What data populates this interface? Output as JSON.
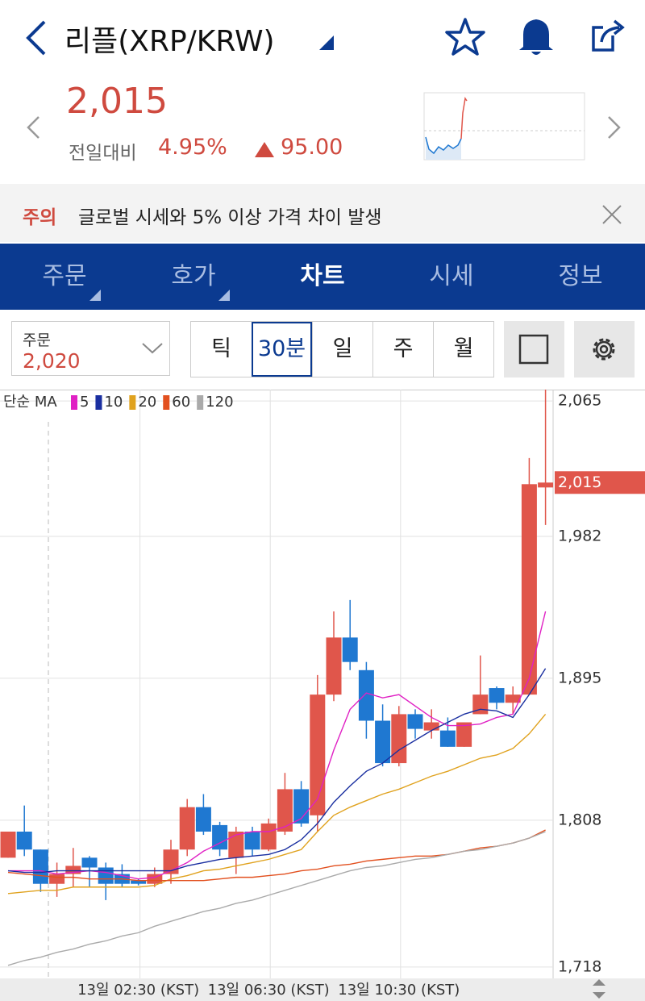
{
  "header": {
    "title": "리플(XRP/KRW)"
  },
  "price": {
    "current": "2,015",
    "change_label": "전일대비",
    "change_percent": "4.95%",
    "change_amount": "95.00"
  },
  "notice": {
    "tag": "주의",
    "text": "글로벌 시세와 5% 이상 가격 차이 발생"
  },
  "tabs": [
    "주문",
    "호가",
    "차트",
    "시세",
    "정보"
  ],
  "active_tab": 2,
  "order": {
    "label": "주문",
    "value": "2,020"
  },
  "periods": [
    "틱",
    "30분",
    "일",
    "주",
    "월"
  ],
  "active_period": 1,
  "chart_data": {
    "type": "candlestick",
    "legend_title": "단순 MA",
    "categories": [
      null,
      null,
      null,
      null,
      null,
      null,
      null,
      null,
      "13일 02:30 (KST)",
      null,
      null,
      null,
      null,
      null,
      null,
      null,
      "13일 06:30 (KST)",
      null,
      null,
      null,
      null,
      null,
      null,
      null,
      "13일 10:30 (KST)",
      null,
      null,
      null,
      null,
      null,
      null,
      null,
      null,
      null
    ],
    "open": [
      1785,
      1801,
      1790,
      1769,
      1775,
      1785,
      1779,
      1775,
      1771,
      1769,
      1775,
      1790,
      1816,
      1805,
      1785,
      1801,
      1790,
      1801,
      1827,
      1811,
      1885,
      1920,
      1900,
      1869,
      1843,
      1873,
      1863,
      1863,
      1853,
      1873,
      1889,
      1880,
      1885,
      2012
    ],
    "high": [
      1801,
      1817,
      1790,
      1782,
      1791,
      1786,
      1782,
      1781,
      1772,
      1779,
      1796,
      1821,
      1824,
      1807,
      1804,
      1804,
      1809,
      1837,
      1832,
      1897,
      1936,
      1943,
      1905,
      1879,
      1878,
      1876,
      1876,
      1871,
      1868,
      1909,
      1890,
      1890,
      2030,
      2072
    ],
    "low": [
      1785,
      1786,
      1764,
      1761,
      1767,
      1767,
      1759,
      1767,
      1768,
      1767,
      1769,
      1786,
      1799,
      1786,
      1775,
      1786,
      1789,
      1799,
      1804,
      1801,
      1881,
      1900,
      1858,
      1841,
      1841,
      1858,
      1858,
      1853,
      1853,
      1873,
      1876,
      1873,
      1885,
      1989
    ],
    "close": [
      1801,
      1790,
      1769,
      1775,
      1780,
      1779,
      1769,
      1769,
      1769,
      1775,
      1790,
      1816,
      1801,
      1790,
      1801,
      1790,
      1806,
      1827,
      1806,
      1885,
      1920,
      1905,
      1869,
      1843,
      1873,
      1864,
      1868,
      1853,
      1868,
      1885,
      1880,
      1885,
      2014,
      2015
    ],
    "up_color": "#e0564b",
    "down_color": "#1f78d1",
    "series": [
      {
        "name": "5",
        "color": "#e021c4",
        "values": [
          1777,
          1777,
          1777,
          1775,
          1776,
          1777,
          1776,
          1774,
          1772,
          1773,
          1777,
          1782,
          1789,
          1794,
          1799,
          1801,
          1801,
          1804,
          1809,
          1821,
          1851,
          1876,
          1886,
          1883,
          1885,
          1878,
          1871,
          1866,
          1866,
          1867,
          1871,
          1873,
          1895,
          1936
        ]
      },
      {
        "name": "10",
        "color": "#1a2fa0",
        "values": [
          1777,
          1776,
          1776,
          1777,
          1777,
          1777,
          1777,
          1777,
          1777,
          1777,
          1777,
          1780,
          1782,
          1784,
          1785,
          1786,
          1787,
          1790,
          1796,
          1806,
          1819,
          1829,
          1838,
          1843,
          1851,
          1857,
          1863,
          1868,
          1873,
          1876,
          1875,
          1871,
          1885,
          1901
        ]
      },
      {
        "name": "20",
        "color": "#e0a21e",
        "values": [
          1763,
          1764,
          1765,
          1765,
          1767,
          1767,
          1767,
          1767,
          1767,
          1768,
          1772,
          1774,
          1777,
          1778,
          1780,
          1782,
          1784,
          1787,
          1790,
          1801,
          1811,
          1816,
          1820,
          1824,
          1827,
          1831,
          1835,
          1838,
          1842,
          1846,
          1848,
          1852,
          1861,
          1873
        ]
      },
      {
        "name": "60",
        "color": "#e2501f",
        "values": [
          1776,
          1775,
          1774,
          1773,
          1773,
          1772,
          1772,
          1772,
          1771,
          1771,
          1771,
          1771,
          1771,
          1772,
          1773,
          1773,
          1774,
          1775,
          1777,
          1778,
          1780,
          1781,
          1783,
          1784,
          1785,
          1786,
          1786,
          1787,
          1789,
          1791,
          1792,
          1794,
          1797,
          1802
        ]
      },
      {
        "name": "120",
        "color": "#aaaaaa",
        "values": [
          1719,
          1722,
          1724,
          1727,
          1729,
          1732,
          1734,
          1737,
          1739,
          1743,
          1746,
          1749,
          1752,
          1754,
          1757,
          1759,
          1762,
          1765,
          1768,
          1771,
          1774,
          1777,
          1779,
          1780,
          1782,
          1784,
          1785,
          1787,
          1789,
          1790,
          1792,
          1794,
          1797,
          1801
        ]
      }
    ],
    "ylim": [
      1711,
      2072
    ],
    "yticks": [
      {
        "value": 2065,
        "label": "2,065"
      },
      {
        "value": 1982,
        "label": "1,982"
      },
      {
        "value": 1895,
        "label": "1,895"
      },
      {
        "value": 1808,
        "label": "1,808"
      },
      {
        "value": 1718,
        "label": "1,718"
      }
    ],
    "current_price": {
      "value": 2015,
      "label": "2,015"
    },
    "grid": true
  }
}
